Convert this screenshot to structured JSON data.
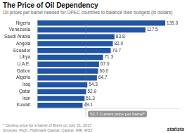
{
  "chart_data": {
    "type": "bar",
    "orientation": "horizontal",
    "title": "The Price of Oil Dependency",
    "subtitle": "Oil prices per barrel needed for OPEC countries to balance their budgets (in dollars)",
    "categories": [
      "Nigeria",
      "Venezuela",
      "Saudi Arabia",
      "Angola",
      "Ecuador",
      "Libya",
      "U.A.E.",
      "Gabon",
      "Algeria",
      "Iraq",
      "Qatar",
      "Iran",
      "Kuwait"
    ],
    "values": [
      139.0,
      117.5,
      83.8,
      82.0,
      79.7,
      71.3,
      67.0,
      66.0,
      64.7,
      54.3,
      52.9,
      51.3,
      49.1
    ],
    "value_labels": [
      "139.0",
      "117.5",
      "83.8",
      "82.0",
      "79.7",
      "71.3",
      "67.0",
      "66.0",
      "64.7",
      "54.3",
      "52.9",
      "51.3",
      "49.1"
    ],
    "data_labels": true,
    "color": "#2155a3",
    "xlim": [
      0,
      155
    ],
    "grid": false,
    "tick_labels": "y",
    "annotations": [
      {
        "x": 52.7,
        "text": "52.7 Current price per barrel*"
      },
      {
        "text": "* Closing price for a barrel of Brent on July 31, 2017"
      },
      {
        "text": "Sources: Fitch, Highmark Capital, Capital, IMF, WSJ"
      },
      {
        "text": "statista"
      }
    ]
  }
}
